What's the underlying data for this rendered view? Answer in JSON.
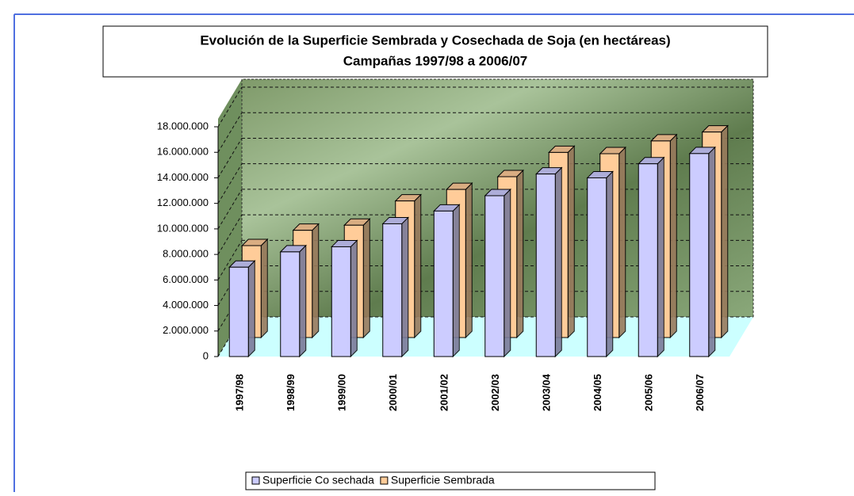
{
  "chart_data": {
    "type": "bar3d",
    "title": "Evolución de la Superficie Sembrada y Cosechada de Soja (en hectáreas)",
    "subtitle": "Campañas 1997/98 a 2006/07",
    "categories": [
      "1997/98",
      "1998/99",
      "1999/00",
      "2000/01",
      "2001/02",
      "2002/03",
      "2003/04",
      "2004/05",
      "2005/06",
      "2006/07"
    ],
    "series": [
      {
        "name": "Superficie Co sechada",
        "color": "#ccccff",
        "values": [
          7000000,
          8200000,
          8600000,
          10400000,
          11400000,
          12600000,
          14300000,
          14000000,
          15100000,
          15900000
        ]
      },
      {
        "name": "Superficie Sembrada",
        "color": "#ffcc99",
        "values": [
          7200000,
          8400000,
          8800000,
          10700000,
          11600000,
          12600000,
          14500000,
          14400000,
          15400000,
          16100000
        ]
      }
    ],
    "ylim": [
      0,
      18000000
    ],
    "yticks": [
      0,
      {
        "value": 2000000,
        "label": "2.000.000"
      },
      {
        "value": 4000000,
        "label": "4.000.000"
      },
      {
        "value": 6000000,
        "label": "6.000.000"
      },
      {
        "value": 8000000,
        "label": "8.000.000"
      },
      {
        "value": 10000000,
        "label": "10.000.000"
      },
      {
        "value": 12000000,
        "label": "12.000.000"
      },
      {
        "value": 14000000,
        "label": "14.000.000"
      },
      {
        "value": 16000000,
        "label": "16.000.000"
      },
      {
        "value": 18000000,
        "label": "18.000.000"
      }
    ],
    "grid": true
  }
}
